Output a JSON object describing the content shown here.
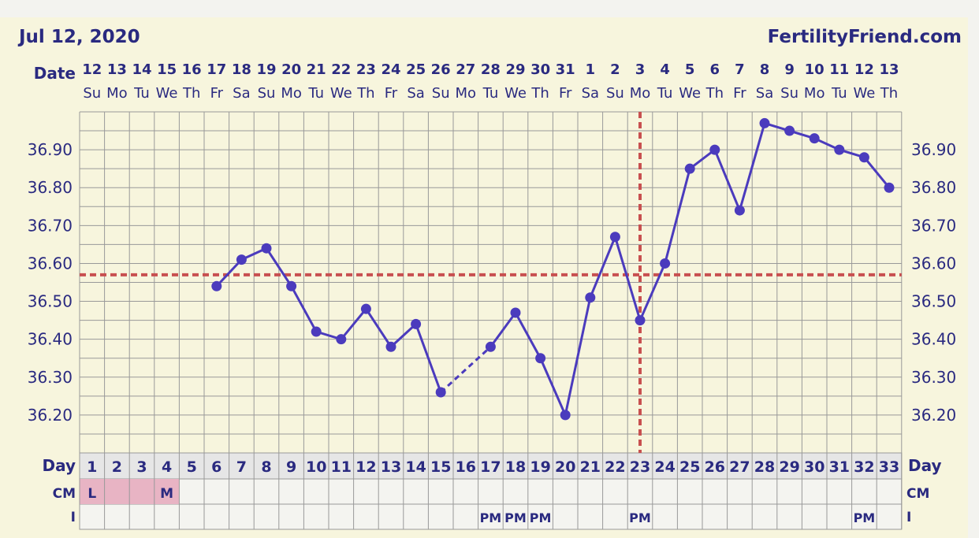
{
  "header": {
    "date": "Jul 12, 2020",
    "site": "FertilityFriend.com"
  },
  "labels": {
    "date_row": "Date",
    "day_row": "Day",
    "cm_row": "CM",
    "i_row": "I"
  },
  "colors": {
    "background": "#f7f5dd",
    "grid": "#999999",
    "line": "#4b3bbd",
    "text": "#2a2a80",
    "coverline": "#c85050",
    "cm_fill": "#e8b4c4",
    "bottom_row": "#f4f4f0",
    "day_row": "#e6e6e6"
  },
  "chart_data": {
    "type": "line",
    "title": "",
    "xlabel": "Day",
    "ylabel": "",
    "ylim": [
      36.1,
      37.0
    ],
    "y_ticks": [
      "36.20",
      "36.30",
      "36.40",
      "36.50",
      "36.60",
      "36.70",
      "36.80",
      "36.90"
    ],
    "x": [
      1,
      2,
      3,
      4,
      5,
      6,
      7,
      8,
      9,
      10,
      11,
      12,
      13,
      14,
      15,
      16,
      17,
      18,
      19,
      20,
      21,
      22,
      23,
      24,
      25,
      26,
      27,
      28,
      29,
      30,
      31,
      32,
      33
    ],
    "dates": [
      "12",
      "13",
      "14",
      "15",
      "16",
      "17",
      "18",
      "19",
      "20",
      "21",
      "22",
      "23",
      "24",
      "25",
      "26",
      "27",
      "28",
      "29",
      "30",
      "31",
      "1",
      "2",
      "3",
      "4",
      "5",
      "6",
      "7",
      "8",
      "9",
      "10",
      "11",
      "12",
      "13"
    ],
    "weekdays": [
      "Su",
      "Mo",
      "Tu",
      "We",
      "Th",
      "Fr",
      "Sa",
      "Su",
      "Mo",
      "Tu",
      "We",
      "Th",
      "Fr",
      "Sa",
      "Su",
      "Mo",
      "Tu",
      "We",
      "Th",
      "Fr",
      "Sa",
      "Su",
      "Mo",
      "Tu",
      "We",
      "Th",
      "Fr",
      "Sa",
      "Su",
      "Mo",
      "Tu",
      "We",
      "Th"
    ],
    "series": [
      {
        "values": [
          null,
          null,
          null,
          null,
          null,
          36.54,
          36.61,
          36.64,
          36.54,
          36.42,
          36.4,
          36.48,
          36.38,
          36.44,
          36.26,
          null,
          36.38,
          36.47,
          36.35,
          36.2,
          36.51,
          36.67,
          36.45,
          36.6,
          36.85,
          36.9,
          36.74,
          36.97,
          36.95,
          36.93,
          36.9,
          36.88,
          36.8
        ]
      }
    ],
    "bridged_gaps": [
      [
        15,
        17
      ]
    ],
    "coverline": 36.57,
    "ovulation_day": 23,
    "cm": [
      "L",
      "",
      "",
      "M",
      "",
      "",
      "",
      "",
      "",
      "",
      "",
      "",
      "",
      "",
      "",
      "",
      "",
      "",
      "",
      "",
      "",
      "",
      "",
      "",
      "",
      "",
      "",
      "",
      "",
      "",
      "",
      "",
      ""
    ],
    "cm_colored_days": [
      1,
      2,
      3,
      4
    ],
    "intercourse": [
      "",
      "",
      "",
      "",
      "",
      "",
      "",
      "",
      "",
      "",
      "",
      "",
      "",
      "",
      "",
      "",
      "PM",
      "PM",
      "PM",
      "",
      "",
      "",
      "PM",
      "",
      "",
      "",
      "",
      "",
      "",
      "",
      "",
      "PM",
      ""
    ],
    "grid": true,
    "legend": "none"
  }
}
